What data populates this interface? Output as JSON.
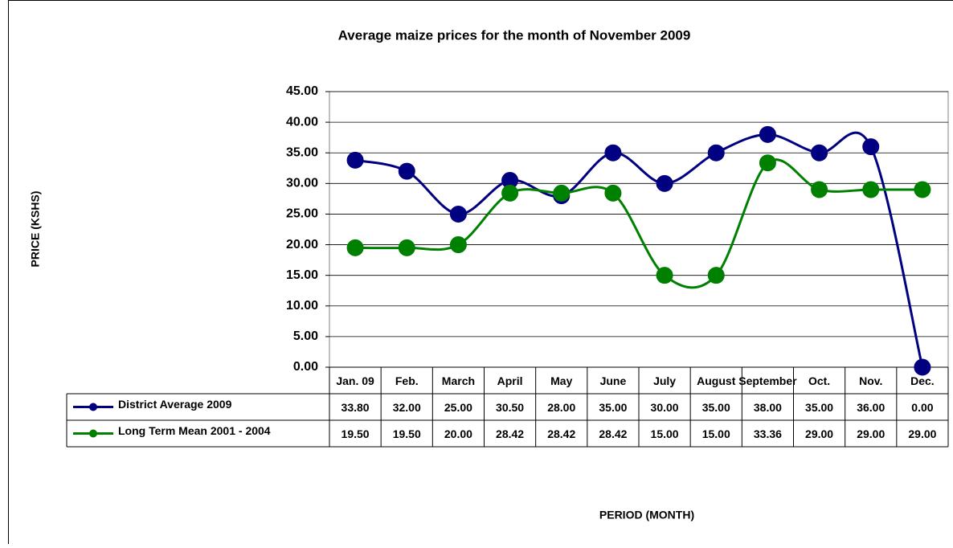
{
  "chart_data": {
    "type": "line",
    "title": "Average maize prices for the month of November 2009",
    "y_label": "PRICE (KSHS)",
    "x_label": "PERIOD (MONTH)",
    "categories": [
      "Jan. 09",
      "Feb.",
      "March",
      "April",
      "May",
      "June",
      "July",
      "August",
      "September",
      "Oct.",
      "Nov.",
      "Dec."
    ],
    "series": [
      {
        "name": "District Average 2009",
        "color": "#000080",
        "values": [
          33.8,
          32,
          25,
          30.5,
          28,
          35,
          30,
          35,
          38,
          35,
          36,
          0
        ],
        "value_labels": [
          "33.80",
          "32.00",
          "25.00",
          "30.50",
          "28.00",
          "35.00",
          "30.00",
          "35.00",
          "38.00",
          "35.00",
          "36.00",
          "0.00"
        ]
      },
      {
        "name": "Long Term Mean 2001 - 2004",
        "color": "#008000",
        "values": [
          19.5,
          19.5,
          20,
          28.42,
          28.42,
          28.42,
          15,
          15,
          33.36,
          29,
          29,
          29
        ],
        "value_labels": [
          "19.50",
          "19.50",
          "20.00",
          "28.42",
          "28.42",
          "28.42",
          "15.00",
          "15.00",
          "33.36",
          "29.00",
          "29.00",
          "29.00"
        ]
      }
    ],
    "ylim": [
      0,
      45
    ],
    "yticks": [
      {
        "value": 0,
        "label": "0.00"
      },
      {
        "value": 5,
        "label": "5.00"
      },
      {
        "value": 10,
        "label": "10.00"
      },
      {
        "value": 15,
        "label": "15.00"
      },
      {
        "value": 20,
        "label": "20.00"
      },
      {
        "value": 25,
        "label": "25.00"
      },
      {
        "value": 30,
        "label": "30.00"
      },
      {
        "value": 35,
        "label": "35.00"
      },
      {
        "value": 40,
        "label": "40.00"
      },
      {
        "value": 45,
        "label": "45.00"
      }
    ],
    "grid": true,
    "smooth": true
  }
}
